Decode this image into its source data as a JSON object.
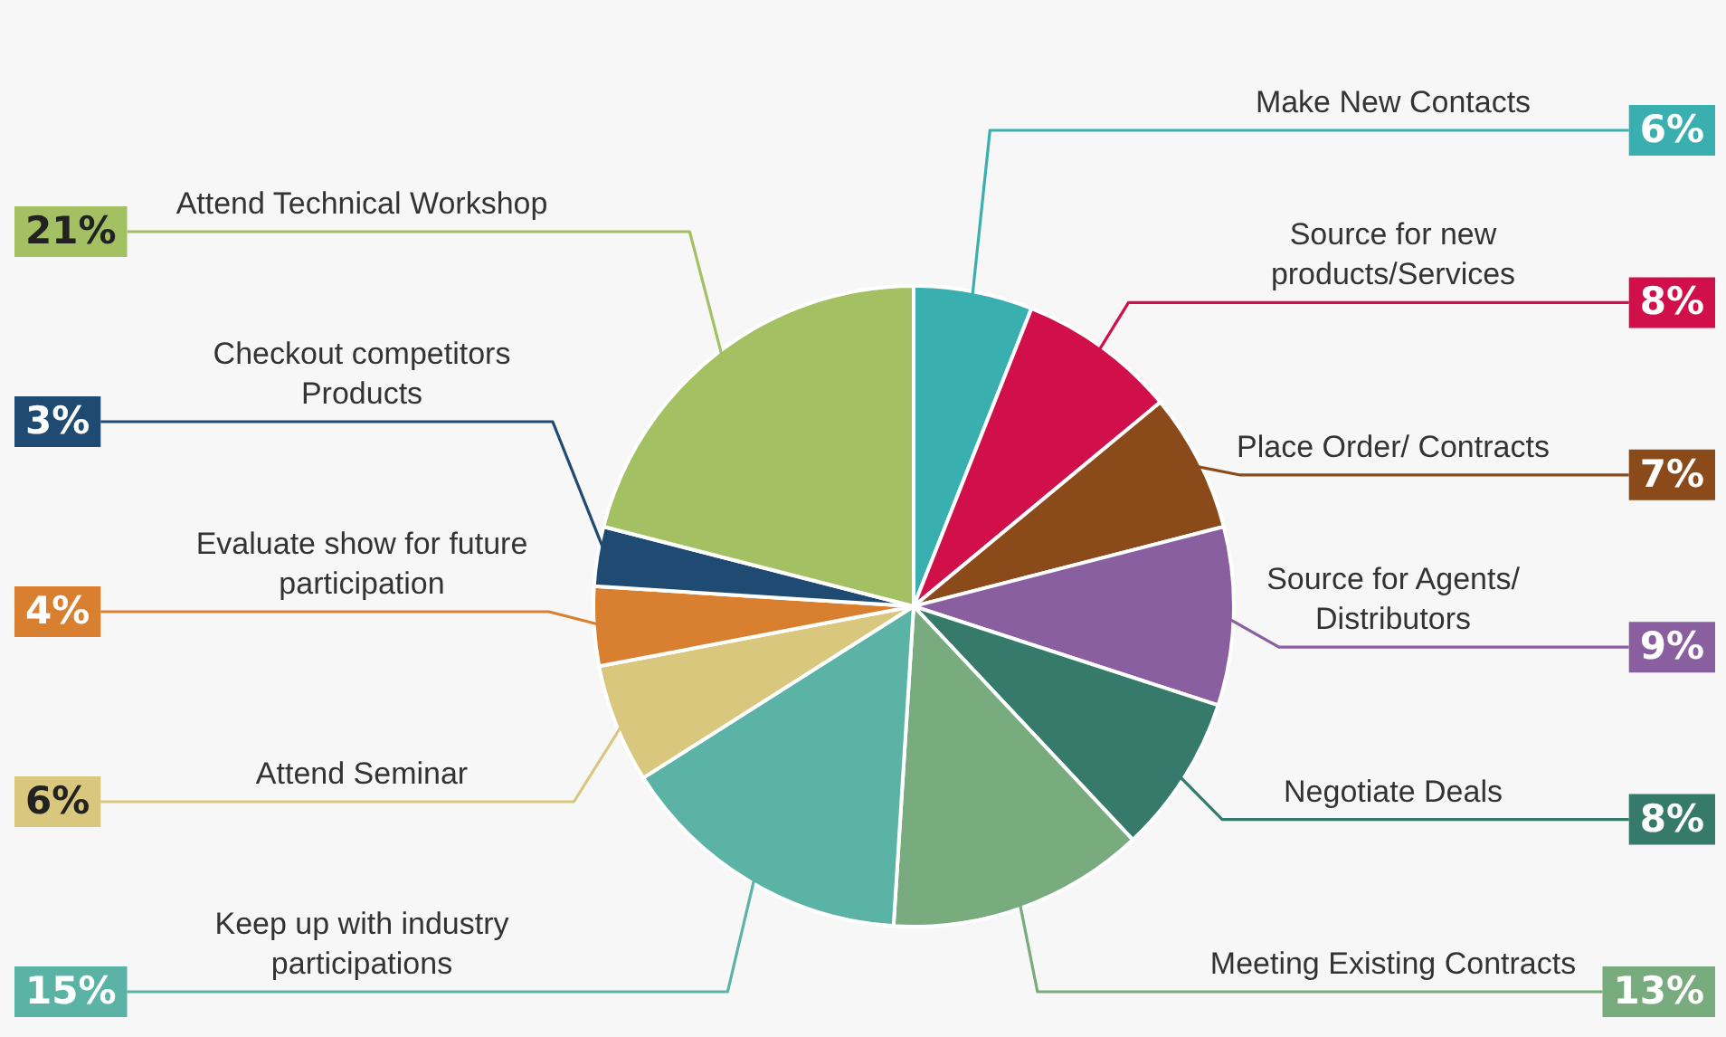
{
  "chart_data": {
    "type": "pie",
    "categories": [
      "Make New Contacts",
      "Source for new products/Services",
      "Place Order/ Contracts",
      "Source for Agents/ Distributors",
      "Negotiate Deals",
      "Meeting Existing Contracts",
      "Keep up with industry participations",
      "Attend Seminar",
      "Evaluate show for future participation",
      "Checkout competitors Products",
      "Attend Technical Workshop"
    ],
    "values": [
      6,
      8,
      7,
      9,
      8,
      13,
      15,
      6,
      4,
      3,
      21
    ],
    "value_labels": [
      "6%",
      "8%",
      "7%",
      "9%",
      "8%",
      "13%",
      "15%",
      "6%",
      "4%",
      "3%",
      "21%"
    ],
    "colors": [
      "#3aafb0",
      "#d10f4b",
      "#8b4a1a",
      "#8a5fa0",
      "#357a6a",
      "#78ab7d",
      "#5bb3a5",
      "#d8c77c",
      "#d98030",
      "#1f4a72",
      "#a3c063"
    ],
    "legend": false
  }
}
